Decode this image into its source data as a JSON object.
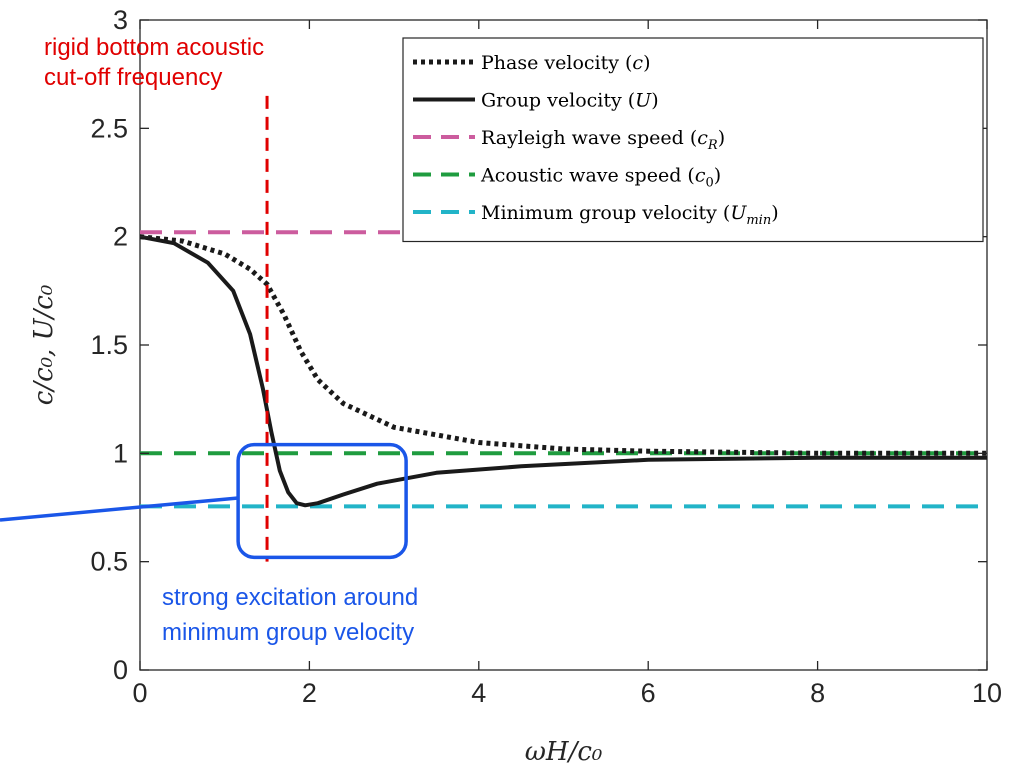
{
  "chart_data": {
    "type": "line",
    "xlabel": "ωH/c₀",
    "ylabel": "c/c₀, U/c₀",
    "xlim": [
      0,
      10
    ],
    "ylim": [
      0,
      3
    ],
    "xticks": [
      "0",
      "2",
      "4",
      "6",
      "8",
      "10"
    ],
    "yticks": [
      "0",
      "0.5",
      "1",
      "1.5",
      "2",
      "2.5",
      "3"
    ],
    "grid": false,
    "legend_position": "top-right",
    "series": [
      {
        "name": "Phase velocity (c)",
        "style": "dotted",
        "color": "#1a1a1a",
        "x": [
          0,
          0.5,
          1.0,
          1.3,
          1.5,
          1.7,
          1.9,
          2.1,
          2.4,
          3.0,
          4.0,
          5.0,
          6.0,
          8.0,
          10.0
        ],
        "y": [
          2.0,
          1.98,
          1.92,
          1.85,
          1.78,
          1.64,
          1.47,
          1.34,
          1.23,
          1.12,
          1.05,
          1.02,
          1.01,
          1.0,
          1.0
        ]
      },
      {
        "name": "Group velocity (U)",
        "style": "solid",
        "color": "#1a1a1a",
        "x": [
          0,
          0.4,
          0.8,
          1.1,
          1.3,
          1.45,
          1.55,
          1.65,
          1.75,
          1.85,
          1.95,
          2.1,
          2.4,
          2.8,
          3.5,
          4.5,
          6.0,
          8.0,
          10.0
        ],
        "y": [
          2.0,
          1.97,
          1.88,
          1.75,
          1.55,
          1.3,
          1.1,
          0.92,
          0.82,
          0.77,
          0.76,
          0.77,
          0.81,
          0.86,
          0.91,
          0.94,
          0.97,
          0.98,
          0.98
        ]
      },
      {
        "name": "Rayleigh wave speed (c_R)",
        "style": "dashed",
        "color": "#cc5c9e",
        "x": [
          0,
          10
        ],
        "y": [
          2.02,
          2.02
        ]
      },
      {
        "name": "Acoustic wave speed (c_0)",
        "style": "dashed",
        "color": "#1f9c3f",
        "x": [
          0,
          10
        ],
        "y": [
          1.0,
          1.0
        ]
      },
      {
        "name": "Minimum group velocity (U_min)",
        "style": "dashed",
        "color": "#22b4c8",
        "x": [
          0,
          10
        ],
        "y": [
          0.755,
          0.755
        ]
      }
    ],
    "legend": [
      {
        "prefix": "Phase velocity (",
        "var": "c",
        "sub": "",
        "suffix": ")"
      },
      {
        "prefix": "Group velocity (",
        "var": "U",
        "sub": "",
        "suffix": ")"
      },
      {
        "prefix": "Rayleigh wave speed (",
        "var": "c",
        "sub": "R",
        "suffix": ")"
      },
      {
        "prefix": "Acoustic wave speed (",
        "var": "c",
        "sub": "0",
        "suffix": ")"
      },
      {
        "prefix": "Minimum group velocity (",
        "var": "U",
        "sub": "min",
        "suffix": ")"
      }
    ],
    "cutoff": {
      "x": 1.5,
      "y_from": 0.5,
      "y_to": 2.65,
      "color": "#e00000",
      "label_lines": [
        "rigid bottom acoustic",
        "cut-off frequency"
      ]
    },
    "highlight": {
      "x_range": [
        1.3,
        3.0
      ],
      "y_range": [
        0.52,
        1.04
      ],
      "color": "#1a56e8",
      "label_lines": [
        "strong excitation around",
        "minimum group velocity"
      ]
    }
  }
}
